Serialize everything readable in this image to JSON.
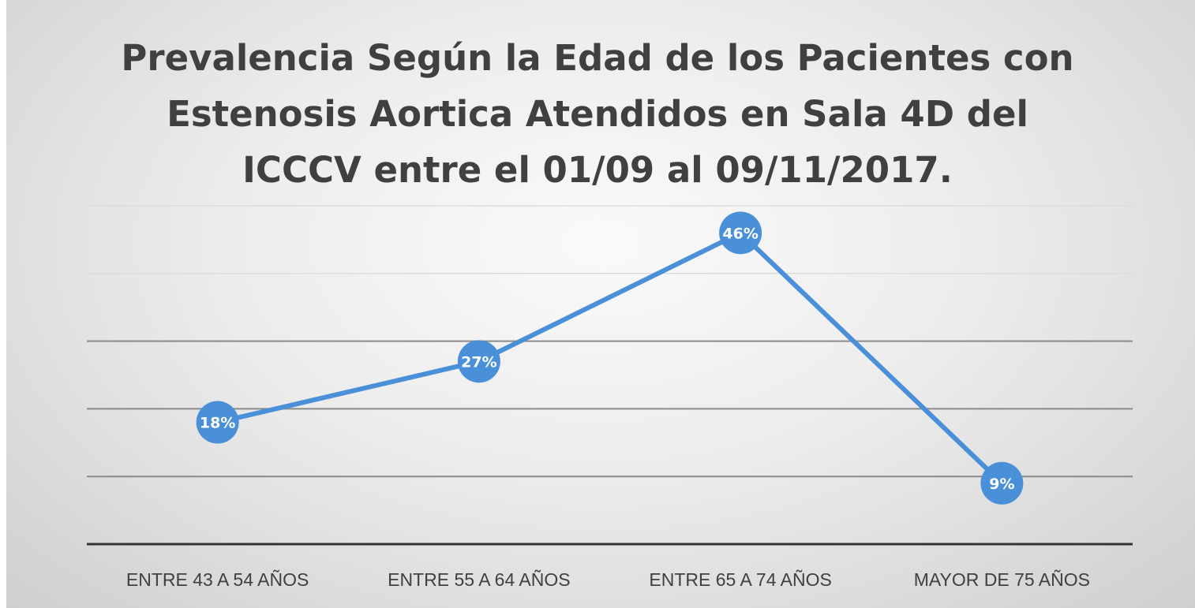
{
  "chart_data": {
    "type": "line",
    "title_lines": [
      "Prevalencia Según la Edad de los Pacientes con",
      "Estenosis Aortica Atendidos en Sala 4D del",
      "ICCCV entre el 01/09 al 09/11/2017."
    ],
    "categories": [
      "ENTRE 43 A 54 AÑOS",
      "ENTRE 55 A 64 AÑOS",
      "ENTRE 65 A 74 AÑOS",
      "MAYOR DE 75 AÑOS"
    ],
    "values": [
      18,
      27,
      46,
      9
    ],
    "data_labels": [
      "18%",
      "27%",
      "46%",
      "9%"
    ],
    "ylim": [
      0,
      50
    ],
    "ytick_step": 10,
    "grid": true,
    "xlabel": "",
    "ylabel": "",
    "series_color": "#4a90d9"
  }
}
